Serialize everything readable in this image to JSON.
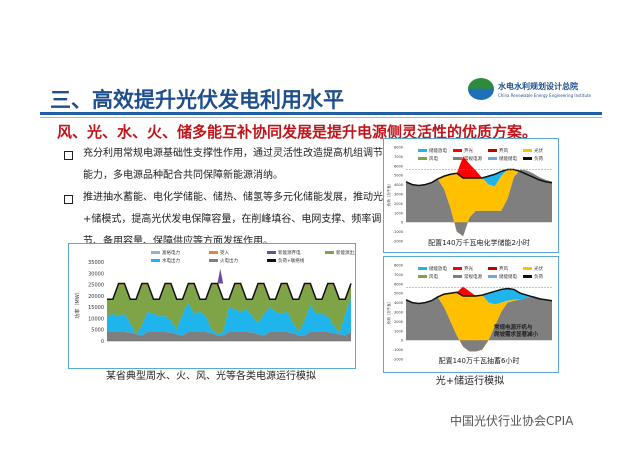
{
  "header": {
    "title": "三、高效提升光伏发电利用水平",
    "logo_text": "水电水利规划设计总院",
    "logo_sub": "China Renewable Energy Engineering Institute",
    "logo_mark": "CREEI"
  },
  "subtitle": "风、光、水、火、储多能互补协同发展是提升电源侧灵活性的优质方案。",
  "bullets": [
    "充分利用常规电源基础性支撑性作用，通过灵活性改造提高机组调节能力，多电源品种配合共同保障新能源消纳。",
    "推进抽水蓄能、电化学储能、储热、储氢等多元化储能发展，推动光+储模式，提高光伏发电保障容量，在削峰填谷、电网支撑、频率调节、备用容量、保障供应等方面发挥作用。"
  ],
  "colors": {
    "title": "#1f4e8c",
    "subtitle": "#c0161b",
    "thermal": "#7f7f7f",
    "hydro": "#1fb4ec",
    "newenergy": "#7fa447",
    "import": "#e8843a",
    "curtail": "#6a4c9c",
    "solar": "#ffc000",
    "red": "#ff0000",
    "darkred": "#c00000"
  },
  "chart_data": [
    {
      "type": "area",
      "caption": "某省典型周水、火、风、光等各类电源运行模拟",
      "ylabel": "功率（MW）",
      "ylim": [
        0,
        35000
      ],
      "yticks": [
        0,
        5000,
        10000,
        15000,
        20000,
        25000,
        30000,
        35000
      ],
      "legend": [
        "富裕电力",
        "受入",
        "新能源弃电",
        "新能源出力",
        "水电出力",
        "火电出力",
        "负荷+联络线"
      ],
      "thermal": [
        4000,
        4000,
        4000,
        4000,
        3800,
        3000,
        2500,
        4000,
        4000,
        4000,
        4000,
        3800,
        3000,
        2500,
        4000,
        4000,
        4000,
        4000,
        3500,
        2500,
        2500,
        4000,
        4000,
        4000,
        4000,
        3800,
        3000,
        2500,
        4000,
        4000,
        4000,
        4000,
        3500,
        2500,
        2500,
        4000,
        4000,
        4000,
        4000,
        3500,
        3000,
        2500,
        4000
      ],
      "hydro_top": [
        11000,
        12000,
        11000,
        12000,
        8000,
        2500,
        7000,
        13000,
        12000,
        11000,
        11000,
        9000,
        5000,
        12000,
        17000,
        12000,
        13000,
        11000,
        5000,
        3000,
        4000,
        15000,
        14000,
        13000,
        14000,
        11000,
        8000,
        12000,
        15000,
        13000,
        12000,
        13000,
        8000,
        4000,
        9000,
        16000,
        12000,
        12000,
        11000,
        7000,
        3500,
        12000,
        19000
      ],
      "load": [
        18500,
        18500,
        25500,
        25500,
        18500,
        18500,
        25500,
        25500,
        18500,
        18500,
        25500,
        25500,
        18500,
        18500,
        25500,
        25500,
        18500,
        18500,
        25500,
        25500,
        18500,
        18500,
        25500,
        25500,
        18500,
        18500,
        25500,
        25500,
        18500,
        18500,
        25500,
        25500,
        18500,
        18500,
        25500,
        25500,
        18500,
        18500,
        25500,
        25500,
        18500,
        18500,
        25500
      ]
    },
    {
      "type": "area",
      "caption": "配置140万千瓦电化学储能2小时",
      "ylabel": "负荷（万千瓦）",
      "ylim": [
        -2000,
        8000
      ],
      "yticks": [
        -2000,
        -1000,
        0,
        1000,
        2000,
        3000,
        4000,
        5000,
        6000,
        7000,
        8000
      ],
      "legend": [
        "储能放电",
        "弃光",
        "弃风",
        "光伏",
        "风电",
        "常规电源",
        "储能储电",
        "负荷"
      ],
      "conventional": [
        4300,
        4000,
        3900,
        4000,
        4200,
        4600,
        3500,
        1500,
        -1000,
        -1500,
        500,
        1200,
        1200,
        1200,
        1200,
        1200,
        2500,
        4800,
        5600,
        5500,
        5200,
        4800,
        4500,
        4300
      ],
      "load": [
        4300,
        4000,
        3900,
        4000,
        4200,
        4600,
        4900,
        5100,
        5200,
        4700,
        4700,
        4700,
        4700,
        4900,
        5100,
        5400,
        5600,
        5600,
        5400,
        5100,
        4800,
        4500,
        4300,
        4200
      ],
      "solar_top": [
        4300,
        4000,
        3900,
        4000,
        4200,
        4600,
        4900,
        5100,
        5200,
        4700,
        4700,
        4700,
        4700,
        4000,
        3800,
        4900,
        5600,
        5600,
        5400,
        5100,
        4800,
        4500,
        4300,
        4200
      ],
      "curtail_top": [
        4300,
        4000,
        3900,
        4000,
        4200,
        4600,
        4900,
        5100,
        5200,
        7000,
        6200,
        5500,
        4700,
        4900,
        5100,
        5400,
        5600,
        5600,
        5400,
        5100,
        4800,
        4500,
        4300,
        4200
      ]
    },
    {
      "type": "area",
      "caption": "配置140万千瓦抽蓄6小时",
      "annotation": "常规电源开机与爬坡需求显著减小",
      "ylabel": "负荷（万千瓦）",
      "ylim": [
        -2000,
        8000
      ],
      "yticks": [
        -2000,
        -1000,
        0,
        1000,
        2000,
        3000,
        4000,
        5000,
        6000,
        7000,
        8000
      ],
      "legend": [
        "储能放电",
        "弃光",
        "弃风",
        "光伏",
        "风电",
        "常规电源",
        "储能储电",
        "负荷"
      ],
      "conventional": [
        4300,
        4000,
        3900,
        4000,
        4200,
        4600,
        3500,
        2000,
        500,
        -700,
        -1200,
        -1200,
        -1000,
        0,
        1500,
        3000,
        4000,
        4200,
        4300,
        4500,
        4700,
        4500,
        4300,
        4200
      ],
      "load": [
        4300,
        4000,
        3900,
        4000,
        4200,
        4600,
        4900,
        5000,
        5100,
        4700,
        4700,
        4700,
        4800,
        5000,
        5200,
        5400,
        5500,
        5400,
        5000,
        4800,
        4600,
        4400,
        4300,
        4200
      ],
      "solar_top": [
        4300,
        4000,
        3900,
        4000,
        4200,
        4600,
        4900,
        5000,
        5100,
        4700,
        4700,
        4700,
        4800,
        4000,
        3800,
        4000,
        4200,
        4300,
        4300,
        4500,
        4700,
        4500,
        4300,
        4200
      ],
      "curtail_top": [
        4300,
        4000,
        3900,
        4000,
        4200,
        4600,
        4900,
        5000,
        5100,
        5700,
        5200,
        4700,
        4800,
        5000,
        5200,
        5400,
        5500,
        5400,
        5000,
        4800,
        4600,
        4400,
        4300,
        4200
      ]
    }
  ],
  "bottom_caption": "光+储运行模拟",
  "watermark": "中国光伏行业协会CPIA"
}
